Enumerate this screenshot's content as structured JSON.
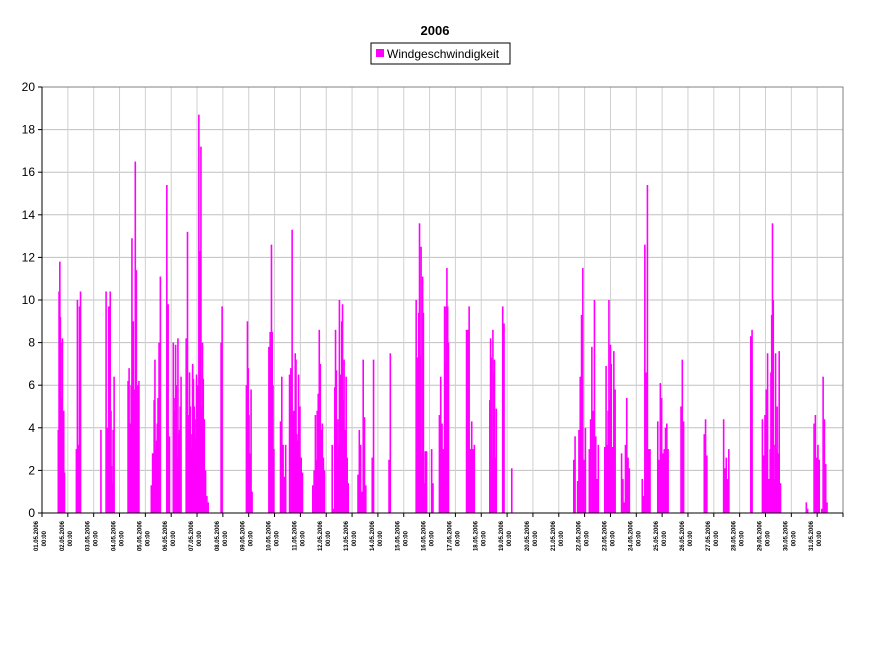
{
  "chart_data": {
    "type": "bar",
    "title": "2006",
    "xlabel": "",
    "ylabel": "",
    "ylim": [
      0,
      20
    ],
    "yticks": [
      0,
      2,
      4,
      6,
      8,
      10,
      12,
      14,
      16,
      18,
      20
    ],
    "grid": {
      "horizontal": true,
      "vertical": true
    },
    "legend": {
      "position": "top-center"
    },
    "series": [
      {
        "name": "Windgeschwindigkeit",
        "color": "#ff00ff",
        "x_day": [
          1.6,
          1.63,
          1.66,
          1.68,
          1.7,
          1.72,
          1.74,
          1.76,
          1.78,
          1.81,
          1.84,
          2.3,
          2.34,
          2.38,
          2.42,
          2.46,
          3.25,
          3.45,
          3.5,
          3.55,
          3.58,
          3.61,
          3.64,
          3.66,
          3.68,
          3.72,
          3.76,
          4.3,
          4.34,
          4.38,
          4.42,
          4.45,
          4.48,
          4.5,
          4.52,
          4.54,
          4.56,
          4.58,
          4.6,
          4.62,
          4.65,
          4.68,
          4.72,
          5.2,
          5.25,
          5.28,
          5.31,
          5.34,
          5.37,
          5.4,
          5.43,
          5.46,
          5.5,
          5.55,
          5.8,
          5.85,
          5.9,
          6.05,
          6.08,
          6.11,
          6.14,
          6.17,
          6.2,
          6.23,
          6.26,
          6.29,
          6.32,
          6.35,
          6.55,
          6.6,
          6.65,
          6.68,
          6.71,
          6.74,
          6.77,
          6.8,
          6.83,
          6.86,
          6.89,
          6.92,
          6.95,
          6.98,
          7.0,
          7.04,
          7.08,
          7.12,
          7.15,
          7.18,
          7.21,
          7.25,
          7.3,
          7.35,
          7.4,
          7.9,
          7.94,
          8.88,
          8.92,
          8.95,
          8.98,
          9.02,
          9.06,
          9.1,
          9.75,
          9.8,
          9.85,
          9.88,
          9.91,
          9.94,
          10.2,
          10.25,
          10.3,
          10.35,
          10.4,
          10.55,
          10.6,
          10.65,
          10.68,
          10.71,
          10.74,
          10.77,
          10.8,
          10.83,
          10.86,
          10.9,
          10.95,
          11.0,
          11.05,
          11.45,
          11.5,
          11.55,
          11.58,
          11.62,
          11.66,
          11.7,
          11.74,
          11.78,
          11.82,
          11.86,
          11.9,
          12.2,
          12.25,
          12.3,
          12.33,
          12.36,
          12.39,
          12.42,
          12.45,
          12.48,
          12.51,
          12.54,
          12.57,
          12.6,
          12.63,
          12.66,
          12.7,
          12.74,
          12.78,
          12.82,
          13.2,
          13.25,
          13.3,
          13.35,
          13.4,
          13.45,
          13.5,
          13.75,
          13.8,
          14.4,
          14.45,
          15.45,
          15.5,
          15.55,
          15.58,
          15.61,
          15.64,
          15.67,
          15.7,
          15.73,
          15.76,
          15.8,
          15.85,
          16.05,
          16.1,
          16.35,
          16.4,
          16.45,
          16.5,
          16.55,
          16.58,
          16.61,
          16.64,
          16.67,
          16.7,
          17.4,
          17.45,
          17.5,
          17.55,
          17.6,
          17.65,
          17.7,
          18.3,
          18.33,
          18.36,
          18.39,
          18.42,
          18.45,
          18.48,
          18.51,
          18.55,
          18.8,
          18.85,
          19.15,
          21.55,
          21.6,
          21.7,
          21.75,
          21.8,
          21.85,
          21.9,
          21.95,
          22.0,
          22.15,
          22.2,
          22.25,
          22.3,
          22.35,
          22.4,
          22.45,
          22.5,
          22.75,
          22.8,
          22.85,
          22.88,
          22.91,
          22.94,
          22.97,
          23.0,
          23.03,
          23.06,
          23.1,
          23.15,
          23.4,
          23.45,
          23.5,
          23.55,
          23.6,
          23.65,
          23.7,
          24.2,
          24.25,
          24.3,
          24.35,
          24.4,
          24.45,
          24.5,
          24.8,
          24.85,
          24.9,
          24.95,
          25.0,
          25.05,
          25.1,
          25.15,
          25.2,
          25.7,
          25.75,
          25.8,
          26.6,
          26.65,
          26.7,
          27.35,
          27.4,
          27.45,
          27.5,
          27.55,
          28.4,
          28.45,
          28.85,
          28.9,
          28.95,
          29.0,
          29.05,
          29.1,
          29.15,
          29.18,
          29.21,
          29.24,
          29.27,
          29.3,
          29.33,
          29.36,
          29.39,
          29.42,
          29.45,
          29.5,
          29.55,
          30.55,
          30.6,
          30.85,
          30.9,
          30.95,
          31.0,
          31.05,
          31.15,
          31.2,
          31.25,
          31.3,
          31.35
        ],
        "values": [
          3.9,
          10.4,
          11.8,
          9.2,
          8.0,
          4.6,
          5.4,
          8.2,
          3.1,
          4.8,
          1.9,
          3.0,
          10.0,
          3.2,
          9.7,
          10.4,
          3.9,
          10.4,
          4.0,
          9.7,
          7.0,
          10.4,
          4.8,
          2.2,
          1.4,
          3.9,
          6.4,
          6.2,
          6.8,
          4.2,
          6.0,
          12.9,
          3.9,
          9.0,
          5.8,
          3.6,
          5.2,
          16.5,
          9.8,
          11.4,
          6.0,
          6.0,
          6.2,
          1.3,
          2.8,
          2.8,
          5.3,
          7.2,
          3.0,
          3.4,
          4.2,
          5.4,
          8.0,
          11.1,
          15.4,
          9.8,
          3.6,
          8.0,
          5.4,
          4.8,
          7.9,
          6.0,
          2.6,
          8.2,
          3.7,
          3.9,
          5.0,
          6.4,
          8.2,
          13.2,
          4.6,
          6.6,
          5.0,
          3.7,
          3.0,
          7.0,
          6.3,
          5.0,
          4.4,
          3.5,
          6.5,
          4.8,
          6.0,
          18.7,
          12.3,
          17.2,
          5.0,
          8.0,
          6.3,
          4.4,
          2.0,
          0.8,
          0.5,
          8.0,
          9.7,
          6.0,
          9.0,
          6.8,
          4.6,
          2.8,
          5.8,
          1.0,
          7.8,
          8.5,
          12.6,
          8.5,
          6.0,
          3.0,
          4.3,
          6.4,
          3.2,
          1.7,
          3.2,
          6.5,
          6.8,
          13.3,
          4.6,
          4.8,
          2.6,
          7.5,
          7.2,
          3.7,
          3.4,
          6.5,
          5.0,
          2.6,
          1.9,
          1.3,
          2.0,
          4.6,
          2.5,
          4.8,
          5.6,
          8.6,
          7.0,
          3.9,
          4.2,
          2.6,
          2.0,
          3.2,
          0.2,
          5.9,
          8.6,
          6.7,
          2.6,
          4.4,
          3.2,
          10.0,
          6.5,
          3.0,
          9.0,
          9.8,
          5.3,
          7.2,
          3.9,
          6.4,
          2.6,
          1.4,
          1.8,
          3.9,
          3.2,
          1.0,
          7.2,
          4.5,
          1.3,
          2.6,
          7.2,
          2.5,
          7.5,
          10.0,
          7.3,
          9.4,
          13.6,
          7.4,
          12.5,
          2.8,
          11.1,
          9.4,
          1.4,
          2.9,
          2.9,
          3.0,
          1.4,
          4.6,
          6.4,
          4.2,
          3.0,
          9.7,
          7.1,
          9.7,
          11.5,
          9.7,
          8.0,
          8.6,
          8.6,
          9.7,
          3.0,
          4.3,
          3.0,
          3.2,
          5.3,
          8.2,
          7.3,
          2.6,
          8.6,
          6.6,
          7.2,
          2.6,
          4.9,
          9.7,
          8.9,
          2.1,
          2.5,
          3.6,
          1.5,
          3.9,
          6.4,
          9.3,
          11.5,
          2.5,
          4.0,
          3.0,
          4.4,
          7.8,
          4.8,
          10.0,
          3.6,
          1.6,
          3.2,
          3.1,
          6.9,
          3.2,
          4.8,
          10.0,
          5.3,
          7.9,
          7.0,
          3.0,
          3.1,
          7.6,
          5.8,
          2.8,
          1.6,
          0.5,
          3.2,
          5.4,
          2.6,
          2.1,
          1.6,
          0.8,
          12.6,
          6.6,
          15.4,
          3.0,
          3.0,
          4.3,
          2.5,
          6.1,
          5.4,
          2.8,
          3.0,
          4.0,
          4.2,
          3.0,
          5.0,
          7.2,
          4.3,
          3.7,
          4.4,
          2.7,
          4.4,
          2.1,
          2.6,
          1.6,
          3.0,
          8.3,
          8.6,
          4.4,
          2.7,
          4.6,
          5.8,
          7.5,
          1.6,
          3.0,
          6.6,
          9.3,
          13.6,
          10.0,
          3.2,
          1.6,
          7.5,
          3.0,
          5.0,
          2.8,
          7.6,
          1.4,
          0.5,
          0.2,
          4.2,
          4.6,
          2.6,
          3.2,
          2.5,
          0.2,
          6.4,
          4.4,
          2.3,
          0.5
        ]
      }
    ],
    "x_tick_labels": [
      {
        "date": "01.05.2006",
        "time": "00:00"
      },
      {
        "date": "02.05.2006",
        "time": "00:00"
      },
      {
        "date": "03.05.2006",
        "time": "00:00"
      },
      {
        "date": "04.05.2006",
        "time": "00:00"
      },
      {
        "date": "05.05.2006",
        "time": "00:00"
      },
      {
        "date": "06.05.2006",
        "time": "00:00"
      },
      {
        "date": "07.05.2006",
        "time": "00:00"
      },
      {
        "date": "08.05.2006",
        "time": "00:00"
      },
      {
        "date": "09.05.2006",
        "time": "00:00"
      },
      {
        "date": "10.05.2006",
        "time": "00:00"
      },
      {
        "date": "11.05.2006",
        "time": "00:00"
      },
      {
        "date": "12.05.2006",
        "time": "00:00"
      },
      {
        "date": "13.05.2006",
        "time": "00:00"
      },
      {
        "date": "14.05.2006",
        "time": "00:00"
      },
      {
        "date": "15.05.2006",
        "time": "00:00"
      },
      {
        "date": "16.05.2006",
        "time": "00:00"
      },
      {
        "date": "17.05.2006",
        "time": "00:00"
      },
      {
        "date": "18.05.2006",
        "time": "00:00"
      },
      {
        "date": "19.05.2006",
        "time": "00:00"
      },
      {
        "date": "20.05.2006",
        "time": "00:00"
      },
      {
        "date": "21.05.2006",
        "time": "00:00"
      },
      {
        "date": "22.05.2006",
        "time": "00:00"
      },
      {
        "date": "23.05.2006",
        "time": "00:00"
      },
      {
        "date": "24.05.2006",
        "time": "00:00"
      },
      {
        "date": "25.05.2006",
        "time": "00:00"
      },
      {
        "date": "26.05.2006",
        "time": "00:00"
      },
      {
        "date": "27.05.2006",
        "time": "00:00"
      },
      {
        "date": "28.05.2006",
        "time": "00:00"
      },
      {
        "date": "29.05.2006",
        "time": "00:00"
      },
      {
        "date": "30.05.2006",
        "time": "00:00"
      },
      {
        "date": "31.05.2006",
        "time": "00:00"
      }
    ]
  }
}
